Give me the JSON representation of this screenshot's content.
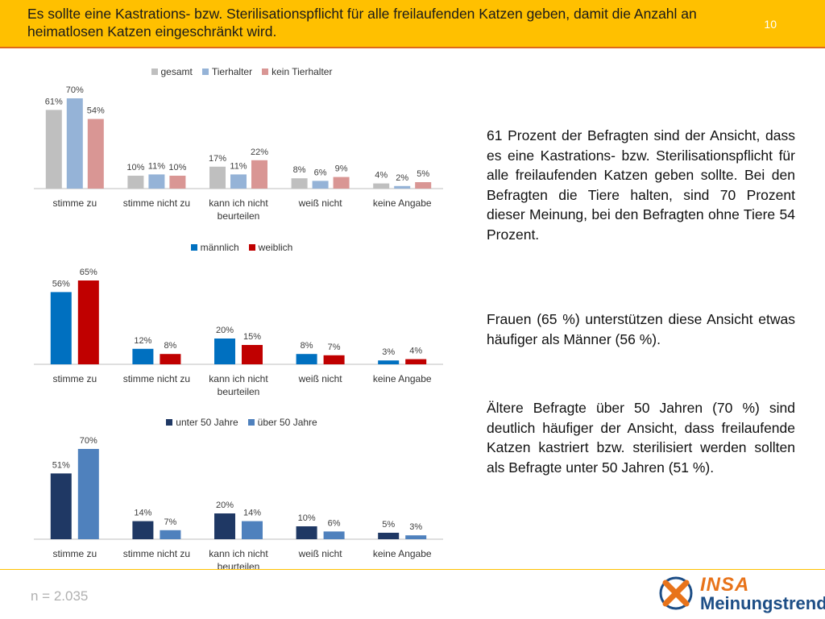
{
  "header": {
    "title": "Es sollte eine Kastrations- bzw. Sterilisationspflicht für alle freilaufenden Katzen geben, damit die Anzahl an heimatlosen Katzen eingeschränkt wird.",
    "page_number": "10"
  },
  "colors": {
    "header_bg": "#ffc000",
    "gesamt": "#bfbfbf",
    "tierhalter": "#95b3d7",
    "kein_tierhalter": "#d99694",
    "maennlich": "#0070c0",
    "weiblich": "#c00000",
    "unter50": "#1f3864",
    "ueber50": "#4f81bd"
  },
  "chart_data": [
    {
      "type": "bar",
      "categories": [
        "stimme zu",
        "stimme nicht zu",
        "kann ich nicht beurteilen",
        "weiß nicht",
        "keine Angabe"
      ],
      "series": [
        {
          "name": "gesamt",
          "color": "#bfbfbf",
          "values": [
            61,
            10,
            17,
            8,
            4
          ]
        },
        {
          "name": "Tierhalter",
          "color": "#95b3d7",
          "values": [
            70,
            11,
            11,
            6,
            2
          ]
        },
        {
          "name": "kein Tierhalter",
          "color": "#d99694",
          "values": [
            54,
            10,
            22,
            9,
            5
          ]
        }
      ],
      "value_suffix": "%",
      "ylim": [
        0,
        70
      ],
      "legend": "top"
    },
    {
      "type": "bar",
      "categories": [
        "stimme zu",
        "stimme nicht zu",
        "kann ich nicht beurteilen",
        "weiß nicht",
        "keine Angabe"
      ],
      "series": [
        {
          "name": "männlich",
          "color": "#0070c0",
          "values": [
            56,
            12,
            20,
            8,
            3
          ]
        },
        {
          "name": "weiblich",
          "color": "#c00000",
          "values": [
            65,
            8,
            15,
            7,
            4
          ]
        }
      ],
      "value_suffix": "%",
      "ylim": [
        0,
        70
      ],
      "legend": "top"
    },
    {
      "type": "bar",
      "categories": [
        "stimme zu",
        "stimme nicht zu",
        "kann ich nicht beurteilen",
        "weiß nicht",
        "keine Angabe"
      ],
      "series": [
        {
          "name": "unter 50 Jahre",
          "color": "#1f3864",
          "values": [
            51,
            14,
            20,
            10,
            5
          ]
        },
        {
          "name": "über 50 Jahre",
          "color": "#4f81bd",
          "values": [
            70,
            7,
            14,
            6,
            3
          ]
        }
      ],
      "value_suffix": "%",
      "ylim": [
        0,
        70
      ],
      "legend": "top"
    }
  ],
  "text": {
    "p1": "61 Prozent der Befragten sind der Ansicht, dass es eine Kastrations- bzw. Sterilisationspflicht für alle freilaufenden Katzen geben sollte. Bei den Befragten die Tiere halten, sind 70 Prozent dieser Meinung, bei den Befragten ohne Tiere 54 Prozent.",
    "p2": "Frauen (65 %) unterstützen diese Ansicht etwas häufiger als Männer (56 %).",
    "p3": "Ältere Befragte über 50 Jahren (70 %) sind deutlich häufiger der Ansicht, dass freilaufende Katzen kastriert bzw. sterilisiert werden sollten als Befragte unter 50 Jahren (51 %)."
  },
  "footer": {
    "sample_size": "n = 2.035",
    "logo_top": "INSA",
    "logo_bottom": "Meinungstrend"
  }
}
